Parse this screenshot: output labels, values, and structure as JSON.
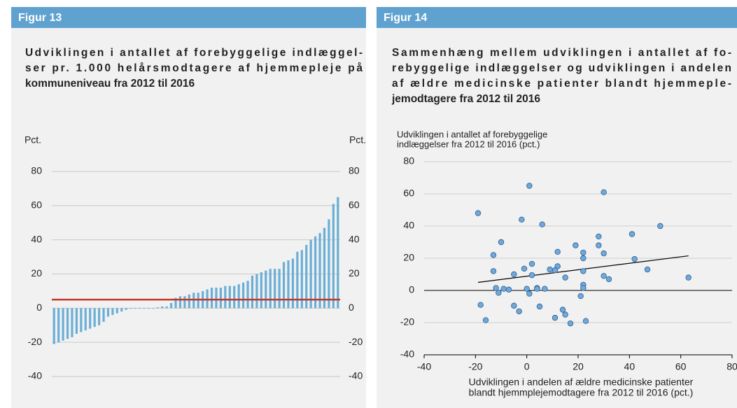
{
  "chart_data": [
    {
      "type": "bar",
      "figure": "Figur 13",
      "title_lines": [
        "Udviklingen i antallet af forebyggelige indlæggel-",
        "ser pr. 1.000 helårsmodtagere af hjemmepleje på",
        "kommuneniveau fra 2012 til 2016"
      ],
      "y_label": "Pct.",
      "y2_label": "Pct.",
      "values": [
        -21,
        -20,
        -19,
        -18,
        -17,
        -15,
        -14,
        -13,
        -12,
        -11,
        -10,
        -8,
        -5,
        -4,
        -3,
        -2,
        -1,
        0,
        0,
        0,
        0,
        0,
        0,
        0.5,
        1,
        1,
        3,
        6,
        7,
        7,
        8,
        9,
        9,
        10,
        11,
        12,
        12,
        12,
        13,
        13,
        13,
        14,
        15,
        16,
        19,
        20,
        21,
        22,
        23,
        23,
        23,
        27,
        28,
        29,
        33,
        34,
        37,
        40,
        42,
        44,
        47,
        52,
        61,
        65
      ],
      "color": "#6aaed6",
      "hline": {
        "value": 5,
        "color": "#c0392b"
      },
      "ylim": [
        -40,
        80
      ],
      "yticks": [
        -40,
        -20,
        0,
        20,
        40,
        60,
        80
      ],
      "y2lim": [
        -40,
        80
      ],
      "y2ticks": [
        -40,
        -20,
        0,
        20,
        40,
        60,
        80
      ],
      "grid": true
    },
    {
      "type": "scatter",
      "figure": "Figur 14",
      "title_lines": [
        "Sammenhæng mellem udviklingen i antallet af fo-",
        "rebyggelige indlæggelser og udviklingen i andelen",
        "af ældre medicinske patienter blandt hjemmeple-",
        "jemodtagere fra 2012 til 2016"
      ],
      "y_label": [
        "Udviklingen i antallet af forebyggelige",
        "indlæggelser fra 2012 til 2016 (pct.)"
      ],
      "x_label": [
        "Udviklingen i andelen af ældre medicinske patienter",
        "blandt hjemmplejemodtagere fra 2012 til 2016 (pct.)"
      ],
      "x": [
        -19,
        1,
        30,
        -2,
        6,
        -10,
        41,
        52,
        28,
        28,
        -13,
        19,
        12,
        30,
        22,
        22,
        2,
        42,
        12,
        -13,
        -1,
        9,
        11,
        47,
        -5,
        2,
        22,
        15,
        30,
        32,
        63,
        22,
        22,
        -12,
        -9,
        -7,
        -11,
        0,
        4,
        4,
        7,
        1,
        21,
        -18,
        5,
        -5,
        -3,
        14,
        15,
        11,
        -16,
        17,
        23
      ],
      "values": [
        48,
        65,
        61,
        44,
        41,
        30,
        35,
        40,
        33.5,
        28,
        22,
        28,
        24,
        23,
        23.5,
        20,
        16.5,
        19.5,
        15,
        12,
        13.5,
        13,
        12.5,
        13,
        10,
        9.5,
        12,
        8,
        9,
        7,
        8,
        3.5,
        1.5,
        1.5,
        1,
        0.5,
        -1.5,
        1,
        1.5,
        1,
        1,
        -2,
        -3.5,
        -9,
        -10,
        -9.5,
        -13,
        -12,
        -15,
        -17,
        -18.5,
        -20.5,
        -19
      ],
      "color": "#6fa8dc",
      "trendline": {
        "x": [
          -19,
          63
        ],
        "y": [
          5,
          21.5
        ],
        "color": "#000000"
      },
      "xlim": [
        -40,
        80
      ],
      "xticks": [
        -40,
        -20,
        0,
        20,
        40,
        60,
        80
      ],
      "ylim": [
        -40,
        80
      ],
      "yticks": [
        -40,
        -20,
        0,
        20,
        40,
        60,
        80
      ],
      "grid": true
    }
  ]
}
